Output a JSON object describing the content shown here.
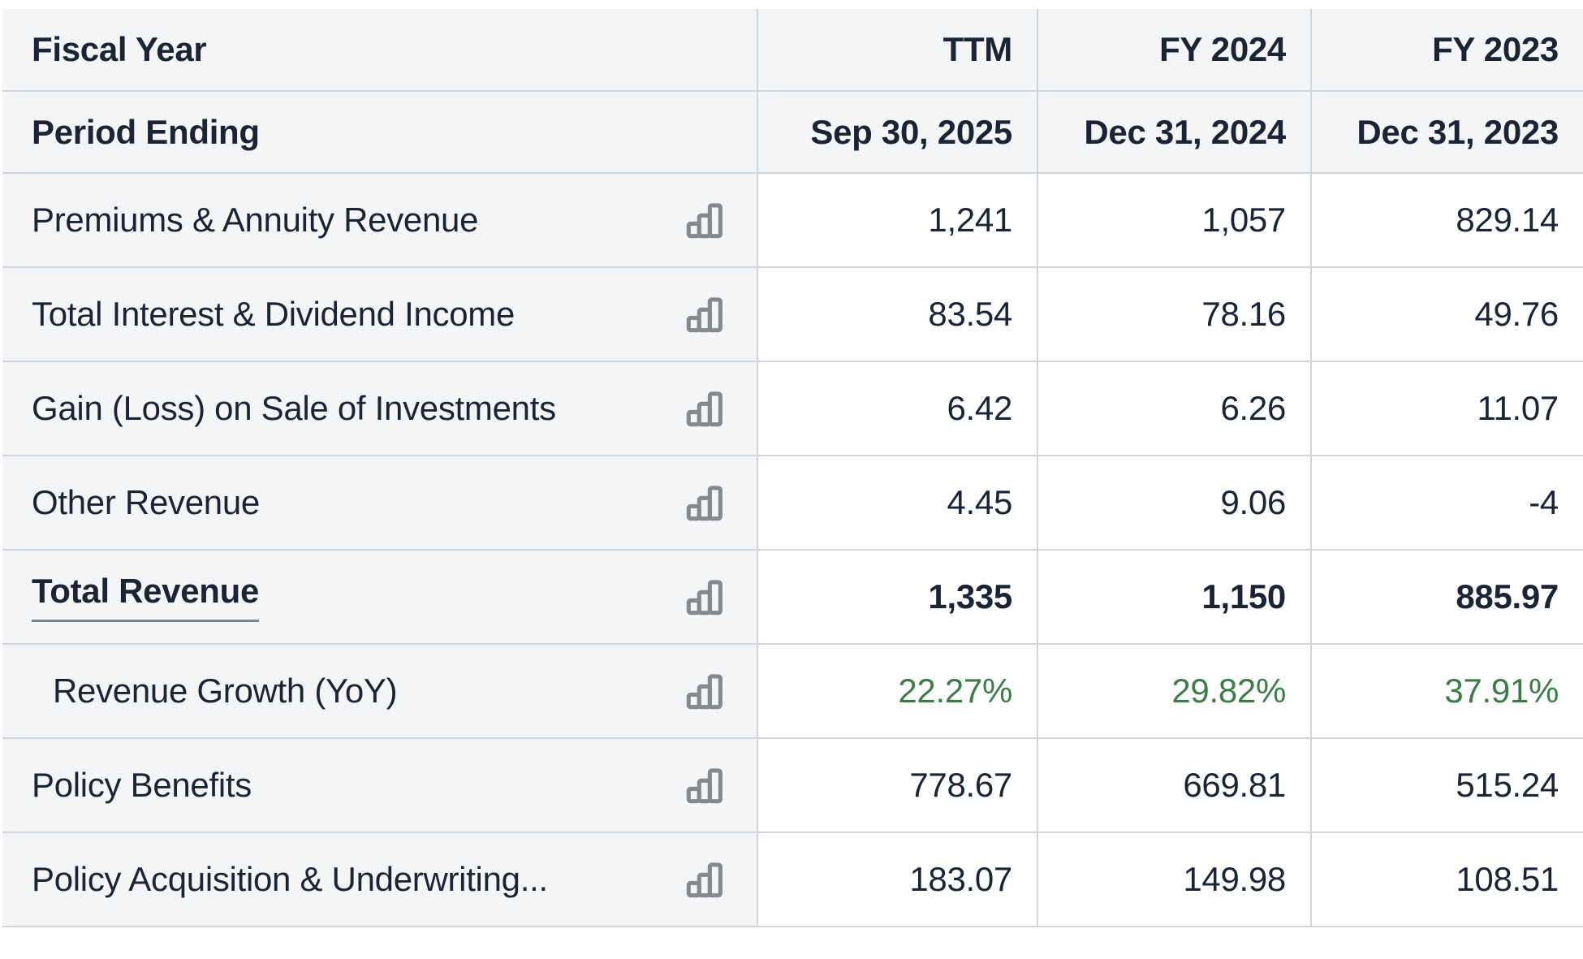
{
  "table": {
    "header_rows": [
      {
        "label": "Fiscal Year",
        "values": [
          "TTM",
          "FY 2024",
          "FY 2023"
        ]
      },
      {
        "label": "Period Ending",
        "values": [
          "Sep 30, 2025",
          "Dec 31, 2024",
          "Dec 31, 2023"
        ]
      }
    ],
    "rows": [
      {
        "label": "Premiums & Annuity Revenue",
        "style": "normal",
        "values": [
          "1,241",
          "1,057",
          "829.14"
        ]
      },
      {
        "label": "Total Interest & Dividend Income",
        "style": "normal",
        "values": [
          "83.54",
          "78.16",
          "49.76"
        ]
      },
      {
        "label": "Gain (Loss) on Sale of Investments",
        "style": "normal",
        "values": [
          "6.42",
          "6.26",
          "11.07"
        ]
      },
      {
        "label": "Other Revenue",
        "style": "normal",
        "values": [
          "4.45",
          "9.06",
          "-4"
        ]
      },
      {
        "label": "Total Revenue",
        "style": "total",
        "values": [
          "1,335",
          "1,150",
          "885.97"
        ]
      },
      {
        "label": "Revenue Growth (YoY)",
        "style": "growth",
        "values": [
          "22.27%",
          "29.82%",
          "37.91%"
        ]
      },
      {
        "label": "Policy Benefits",
        "style": "normal",
        "values": [
          "778.67",
          "669.81",
          "515.24"
        ]
      },
      {
        "label": "Policy Acquisition & Underwriting...",
        "style": "normal",
        "values": [
          "183.07",
          "149.98",
          "108.51"
        ]
      }
    ],
    "row_icon": "bar-chart-icon",
    "colors": {
      "header_bg": "#f4f5f7",
      "label_bg": "#f4f5f7",
      "cell_bg": "#ffffff",
      "border": "#d2d5da",
      "text": "#1b2434",
      "growth_green": "#3b7c47",
      "icon_gray": "#85888c",
      "total_underline": "#7b828c"
    }
  }
}
